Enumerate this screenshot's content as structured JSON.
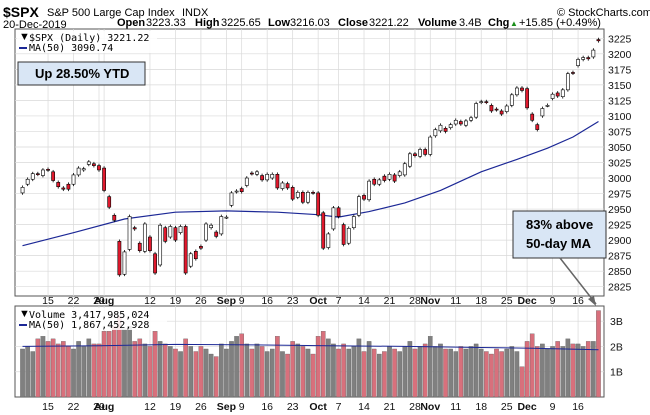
{
  "header": {
    "ticker": "$SPX",
    "name": "S&P 500 Large Cap Index",
    "exchange": "INDX",
    "date": "20-Dec-2019",
    "open_label": "Open",
    "open": "3223.33",
    "high_label": "High",
    "high": "3225.65",
    "low_label": "Low",
    "low": "3216.03",
    "close_label": "Close",
    "close": "3221.22",
    "volume_label": "Volume",
    "volume": "3.4B",
    "chg_label": "Chg",
    "chg": "+15.85 (+0.49%)",
    "chg_arrow": "▲",
    "copyright": "© StockCharts.com"
  },
  "legend": {
    "price": "$SPX (Daily) 3221.22",
    "ma": "MA(50) 3090.74",
    "volume": "Volume 3,417,985,024",
    "volume_ma": "MA(50) 1,867,452,928"
  },
  "annotations": {
    "ytd": "Up 28.50% YTD",
    "ma_note_line1": "83% above",
    "ma_note_line2": "50-day MA"
  },
  "chart_data": {
    "type": "candlestick",
    "ylim": [
      2810,
      3240
    ],
    "y_ticks": [
      2825,
      2850,
      2875,
      2900,
      2925,
      2950,
      2975,
      3000,
      3025,
      3050,
      3075,
      3100,
      3125,
      3150,
      3175,
      3200,
      3225
    ],
    "volume_ylim": [
      0,
      3.6
    ],
    "volume_ticks": [
      {
        "v": 1,
        "label": "1B"
      },
      {
        "v": 2,
        "label": "2B"
      },
      {
        "v": 3,
        "label": "3B"
      }
    ],
    "x_labels": [
      {
        "i": 5,
        "label": "15",
        "bold": false
      },
      {
        "i": 10,
        "label": "22",
        "bold": false
      },
      {
        "i": 15,
        "label": "29",
        "bold": false
      },
      {
        "i": 16,
        "label": "Aug",
        "bold": true
      },
      {
        "i": 25,
        "label": "12",
        "bold": false
      },
      {
        "i": 30,
        "label": "19",
        "bold": false
      },
      {
        "i": 35,
        "label": "26",
        "bold": false
      },
      {
        "i": 40,
        "label": "Sep",
        "bold": true
      },
      {
        "i": 43,
        "label": "9",
        "bold": false
      },
      {
        "i": 48,
        "label": "16",
        "bold": false
      },
      {
        "i": 53,
        "label": "23",
        "bold": false
      },
      {
        "i": 58,
        "label": "Oct",
        "bold": true
      },
      {
        "i": 62,
        "label": "7",
        "bold": false
      },
      {
        "i": 67,
        "label": "14",
        "bold": false
      },
      {
        "i": 72,
        "label": "21",
        "bold": false
      },
      {
        "i": 77,
        "label": "28",
        "bold": false
      },
      {
        "i": 80,
        "label": "Nov",
        "bold": true
      },
      {
        "i": 85,
        "label": "11",
        "bold": false
      },
      {
        "i": 90,
        "label": "18",
        "bold": false
      },
      {
        "i": 95,
        "label": "25",
        "bold": false
      },
      {
        "i": 99,
        "label": "Dec",
        "bold": true
      },
      {
        "i": 104,
        "label": "9",
        "bold": false
      },
      {
        "i": 109,
        "label": "16",
        "bold": false
      }
    ],
    "price": [
      {
        "o": 2976,
        "c": 2985,
        "v": 1.9
      },
      {
        "o": 2990,
        "c": 2998,
        "v": 2.0
      },
      {
        "o": 2998,
        "c": 3007,
        "v": 1.8
      },
      {
        "o": 3007,
        "c": 3006,
        "v": 2.3
      },
      {
        "o": 3004,
        "c": 3013,
        "v": 2.4
      },
      {
        "o": 3014,
        "c": 3013,
        "v": 2.2
      },
      {
        "o": 3010,
        "c": 2996,
        "v": 2.3
      },
      {
        "o": 2993,
        "c": 2986,
        "v": 2.1
      },
      {
        "o": 2984,
        "c": 2982,
        "v": 2.2
      },
      {
        "o": 2990,
        "c": 2982,
        "v": 2.0
      },
      {
        "o": 2990,
        "c": 3005,
        "v": 1.9
      },
      {
        "o": 3005,
        "c": 3016,
        "v": 2.2
      },
      {
        "o": 3013,
        "c": 3015,
        "v": 2.0
      },
      {
        "o": 3022,
        "c": 3026,
        "v": 2.3
      },
      {
        "o": 3023,
        "c": 3020,
        "v": 2.1
      },
      {
        "o": 3020,
        "c": 3013,
        "v": 2.1
      },
      {
        "o": 3016,
        "c": 2980,
        "v": 2.6
      },
      {
        "o": 2970,
        "c": 2953,
        "v": 2.6
      },
      {
        "o": 2940,
        "c": 2932,
        "v": 2.8
      },
      {
        "o": 2898,
        "c": 2844,
        "v": 3.2
      },
      {
        "o": 2845,
        "c": 2881,
        "v": 2.7
      },
      {
        "o": 2885,
        "c": 2938,
        "v": 2.8
      },
      {
        "o": 2920,
        "c": 2918,
        "v": 2.2
      },
      {
        "o": 2895,
        "c": 2883,
        "v": 2.3
      },
      {
        "o": 2882,
        "c": 2926,
        "v": 2.1
      },
      {
        "o": 2905,
        "c": 2883,
        "v": 2.0
      },
      {
        "o": 2878,
        "c": 2847,
        "v": 2.6
      },
      {
        "o": 2860,
        "c": 2924,
        "v": 2.2
      },
      {
        "o": 2920,
        "c": 2898,
        "v": 2.1
      },
      {
        "o": 2905,
        "c": 2922,
        "v": 2.0
      },
      {
        "o": 2920,
        "c": 2900,
        "v": 1.9
      },
      {
        "o": 2912,
        "c": 2922,
        "v": 1.8
      },
      {
        "o": 2922,
        "c": 2847,
        "v": 2.3
      },
      {
        "o": 2858,
        "c": 2878,
        "v": 2.0
      },
      {
        "o": 2882,
        "c": 2870,
        "v": 1.8
      },
      {
        "o": 2890,
        "c": 2887,
        "v": 2.0
      },
      {
        "o": 2900,
        "c": 2926,
        "v": 1.9
      },
      {
        "o": 2920,
        "c": 2924,
        "v": 1.7
      },
      {
        "o": 2913,
        "c": 2906,
        "v": 1.6
      },
      {
        "o": 2910,
        "c": 2938,
        "v": 2.1
      },
      {
        "o": 2937,
        "c": 2937,
        "v": 1.9
      },
      {
        "o": 2956,
        "c": 2976,
        "v": 2.2
      },
      {
        "o": 2978,
        "c": 2979,
        "v": 2.4
      },
      {
        "o": 2983,
        "c": 2978,
        "v": 2.5
      },
      {
        "o": 2988,
        "c": 3000,
        "v": 2.1
      },
      {
        "o": 3008,
        "c": 3007,
        "v": 1.9
      },
      {
        "o": 3006,
        "c": 3010,
        "v": 2.1
      },
      {
        "o": 3004,
        "c": 2997,
        "v": 2.0
      },
      {
        "o": 2997,
        "c": 3006,
        "v": 1.8
      },
      {
        "o": 3000,
        "c": 3006,
        "v": 1.9
      },
      {
        "o": 3006,
        "c": 2984,
        "v": 2.4
      },
      {
        "o": 2983,
        "c": 2992,
        "v": 1.8
      },
      {
        "o": 2991,
        "c": 2984,
        "v": 1.7
      },
      {
        "o": 2985,
        "c": 2966,
        "v": 2.2
      },
      {
        "o": 2969,
        "c": 2977,
        "v": 2.1
      },
      {
        "o": 2977,
        "c": 2961,
        "v": 2.0
      },
      {
        "o": 2961,
        "c": 2977,
        "v": 1.9
      },
      {
        "o": 2977,
        "c": 2976,
        "v": 1.7
      },
      {
        "o": 2976,
        "c": 2940,
        "v": 2.4
      },
      {
        "o": 2944,
        "c": 2887,
        "v": 2.6
      },
      {
        "o": 2888,
        "c": 2910,
        "v": 2.3
      },
      {
        "o": 2918,
        "c": 2952,
        "v": 2.1
      },
      {
        "o": 2952,
        "c": 2938,
        "v": 1.9
      },
      {
        "o": 2925,
        "c": 2893,
        "v": 2.1
      },
      {
        "o": 2895,
        "c": 2919,
        "v": 1.9
      },
      {
        "o": 2920,
        "c": 2938,
        "v": 2.0
      },
      {
        "o": 2940,
        "c": 2970,
        "v": 2.3
      },
      {
        "o": 2972,
        "c": 2966,
        "v": 1.8
      },
      {
        "o": 2965,
        "c": 2995,
        "v": 2.2
      },
      {
        "o": 2998,
        "c": 2990,
        "v": 1.9
      },
      {
        "o": 2990,
        "c": 2997,
        "v": 1.7
      },
      {
        "o": 3003,
        "c": 2996,
        "v": 1.8
      },
      {
        "o": 2998,
        "c": 3006,
        "v": 2.0
      },
      {
        "o": 3005,
        "c": 2995,
        "v": 1.9
      },
      {
        "o": 3004,
        "c": 3010,
        "v": 1.8
      },
      {
        "o": 3005,
        "c": 3023,
        "v": 2.0
      },
      {
        "o": 3019,
        "c": 3039,
        "v": 2.2
      },
      {
        "o": 3039,
        "c": 3036,
        "v": 1.9
      },
      {
        "o": 3035,
        "c": 3046,
        "v": 2.0
      },
      {
        "o": 3046,
        "c": 3038,
        "v": 2.1
      },
      {
        "o": 3038,
        "c": 3066,
        "v": 2.4
      },
      {
        "o": 3068,
        "c": 3078,
        "v": 2.0
      },
      {
        "o": 3076,
        "c": 3085,
        "v": 2.1
      },
      {
        "o": 3080,
        "c": 3075,
        "v": 1.9
      },
      {
        "o": 3081,
        "c": 3086,
        "v": 1.9
      },
      {
        "o": 3087,
        "c": 3093,
        "v": 1.8
      },
      {
        "o": 3091,
        "c": 3087,
        "v": 2.0
      },
      {
        "o": 3085,
        "c": 3092,
        "v": 1.9
      },
      {
        "o": 3093,
        "c": 3097,
        "v": 2.0
      },
      {
        "o": 3098,
        "c": 3120,
        "v": 2.1
      },
      {
        "o": 3122,
        "c": 3123,
        "v": 1.9
      },
      {
        "o": 3123,
        "c": 3122,
        "v": 1.8
      },
      {
        "o": 3117,
        "c": 3108,
        "v": 1.7
      },
      {
        "o": 3111,
        "c": 3110,
        "v": 1.9
      },
      {
        "o": 3108,
        "c": 3103,
        "v": 1.8
      },
      {
        "o": 3107,
        "c": 3116,
        "v": 1.9
      },
      {
        "o": 3117,
        "c": 3134,
        "v": 2.0
      },
      {
        "o": 3134,
        "c": 3145,
        "v": 1.8
      },
      {
        "o": 3145,
        "c": 3141,
        "v": 1.2
      },
      {
        "o": 3144,
        "c": 3113,
        "v": 2.2
      },
      {
        "o": 3103,
        "c": 3093,
        "v": 2.5
      },
      {
        "o": 3086,
        "c": 3078,
        "v": 2.0
      },
      {
        "o": 3100,
        "c": 3112,
        "v": 2.1
      },
      {
        "o": 3117,
        "c": 3117,
        "v": 1.9
      },
      {
        "o": 3128,
        "c": 3135,
        "v": 2.0
      },
      {
        "o": 3137,
        "c": 3132,
        "v": 2.2
      },
      {
        "o": 3131,
        "c": 3142,
        "v": 2.0
      },
      {
        "o": 3142,
        "c": 3168,
        "v": 2.3
      },
      {
        "o": 3170,
        "c": 3169,
        "v": 2.1
      },
      {
        "o": 3181,
        "c": 3191,
        "v": 2.1
      },
      {
        "o": 3191,
        "c": 3194,
        "v": 2.0
      },
      {
        "o": 3194,
        "c": 3192,
        "v": 2.2
      },
      {
        "o": 3195,
        "c": 3206,
        "v": 2.2
      },
      {
        "o": 3223,
        "c": 3221,
        "v": 3.42
      }
    ],
    "ma50": [
      {
        "i": 0,
        "v": 2891
      },
      {
        "i": 10,
        "v": 2912
      },
      {
        "i": 20,
        "v": 2934
      },
      {
        "i": 30,
        "v": 2945
      },
      {
        "i": 40,
        "v": 2947
      },
      {
        "i": 50,
        "v": 2945
      },
      {
        "i": 58,
        "v": 2941
      },
      {
        "i": 62,
        "v": 2937
      },
      {
        "i": 68,
        "v": 2946
      },
      {
        "i": 75,
        "v": 2960
      },
      {
        "i": 82,
        "v": 2980
      },
      {
        "i": 90,
        "v": 3010
      },
      {
        "i": 97,
        "v": 3030
      },
      {
        "i": 103,
        "v": 3048
      },
      {
        "i": 108,
        "v": 3066
      },
      {
        "i": 113,
        "v": 3091
      }
    ],
    "volume_ma50": [
      {
        "i": 0,
        "v": 2.0
      },
      {
        "i": 15,
        "v": 2.03
      },
      {
        "i": 30,
        "v": 2.08
      },
      {
        "i": 45,
        "v": 2.06
      },
      {
        "i": 60,
        "v": 2.03
      },
      {
        "i": 75,
        "v": 2.0
      },
      {
        "i": 90,
        "v": 1.96
      },
      {
        "i": 100,
        "v": 1.93
      },
      {
        "i": 113,
        "v": 1.87
      }
    ]
  },
  "colors": {
    "up_fill": "#ffffff",
    "down_fill": "#e0192d",
    "candle_outline": "#000000",
    "ma_line": "#1c2896",
    "vol_up": "#808080",
    "vol_down": "#d8707c",
    "grid": "#d9d9d9",
    "annotation_box": "#d9e6f5",
    "arrow": "#666666"
  }
}
